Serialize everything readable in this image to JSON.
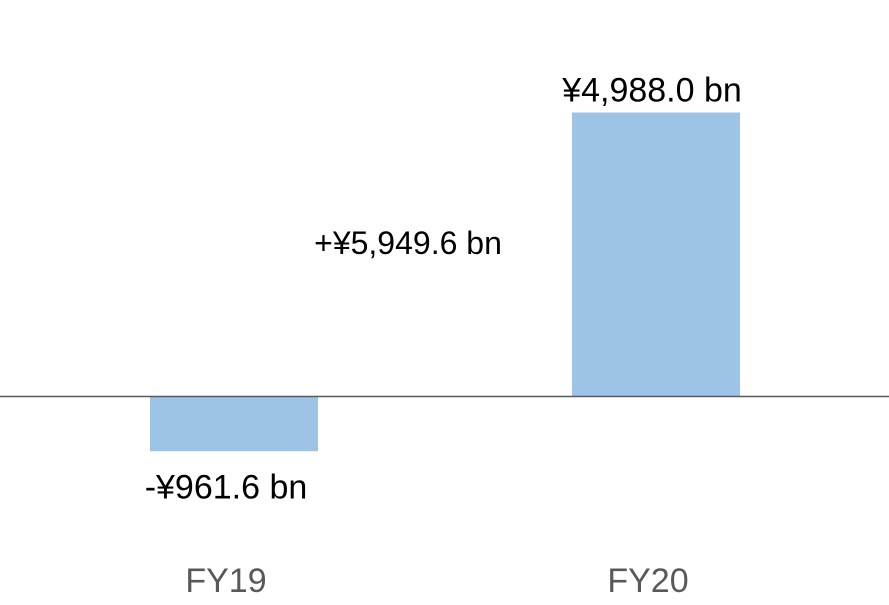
{
  "colors": {
    "bar": "#9dc3e6",
    "axis": "#595959",
    "data_label": "#000000",
    "category_label": "#595959"
  },
  "chart_data": {
    "type": "bar",
    "categories": [
      "FY19",
      "FY20"
    ],
    "values": [
      -961.6,
      4988.0
    ],
    "unit": "¥ bn",
    "data_labels": [
      "-¥961.6 bn",
      "¥4,988.0 bn"
    ],
    "annotations": [
      {
        "text": "+¥5,949.6 bn"
      }
    ],
    "title": "",
    "xlabel": "",
    "ylabel": "",
    "grid": false,
    "legend": "none"
  }
}
